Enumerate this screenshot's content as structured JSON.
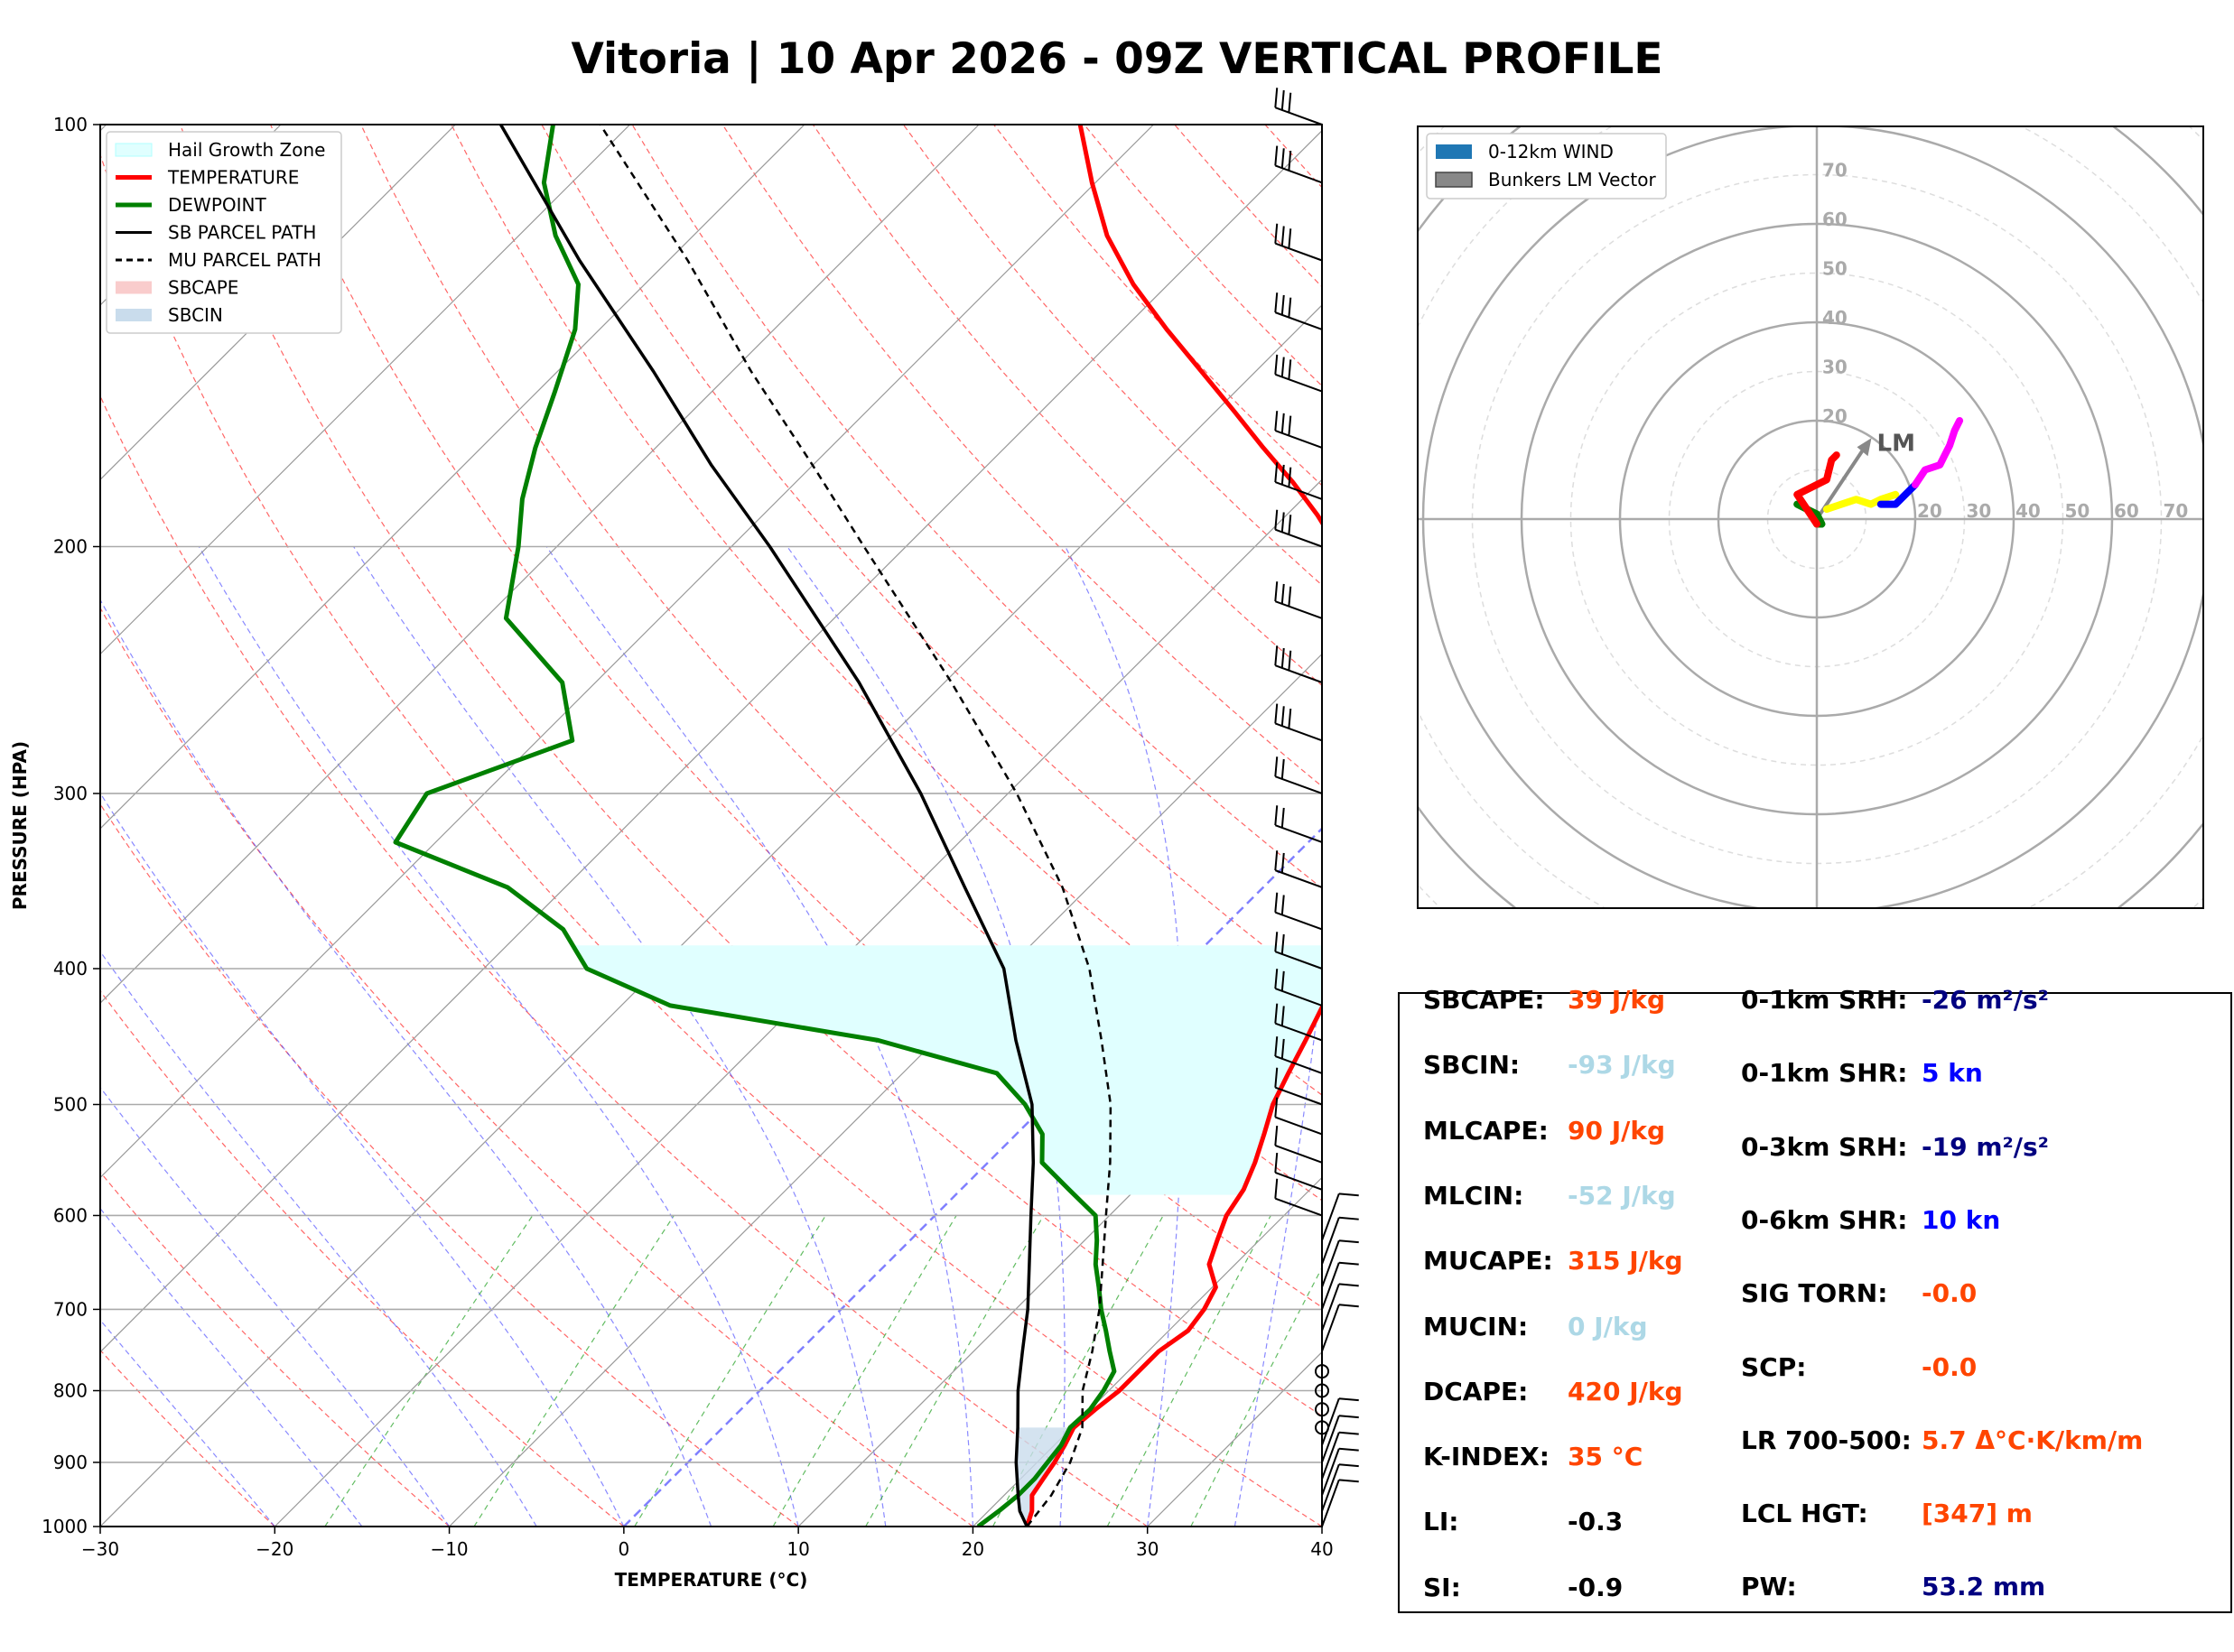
{
  "title": "Vitoria | 10 Apr 2026 - 09Z VERTICAL PROFILE",
  "chart_data": [
    {
      "type": "line",
      "subtype": "skew-t log-p",
      "xlabel": "TEMPERATURE (°C)",
      "ylabel": "PRESSURE (HPA)",
      "xlim": [
        -30,
        40
      ],
      "ylim": [
        1000,
        100
      ],
      "x_ticks": [
        "−30",
        "−20",
        "−10",
        "0",
        "10",
        "20",
        "30",
        "40"
      ],
      "y_ticks": [
        "100",
        "200",
        "300",
        "400",
        "500",
        "600",
        "700",
        "800",
        "900",
        "1000"
      ],
      "legend": {
        "position": "top-left",
        "entries": [
          {
            "label": "Hail Growth Zone",
            "color": "#e0ffff"
          },
          {
            "label": "TEMPERATURE",
            "color": "#ff0000"
          },
          {
            "label": "DEWPOINT",
            "color": "#008000"
          },
          {
            "label": "SB PARCEL PATH",
            "color": "#000000"
          },
          {
            "label": "MU PARCEL PATH",
            "color": "#000000"
          },
          {
            "label": "SBCAPE",
            "color": "#f9cccc"
          },
          {
            "label": "SBCIN",
            "color": "#c9dcec"
          }
        ]
      },
      "series": [
        {
          "name": "TEMPERATURE",
          "color": "#ff0000",
          "points": [
            [
              1000,
              23.1
            ],
            [
              975,
              22.5
            ],
            [
              950,
              21.6
            ],
            [
              925,
              21.3
            ],
            [
              900,
              21.0
            ],
            [
              875,
              20.6
            ],
            [
              850,
              20.1
            ],
            [
              825,
              20.3
            ],
            [
              800,
              20.6
            ],
            [
              775,
              20.6
            ],
            [
              750,
              20.6
            ],
            [
              725,
              21.1
            ],
            [
              700,
              20.8
            ],
            [
              675,
              20.2
            ],
            [
              650,
              18.5
            ],
            [
              625,
              17.6
            ],
            [
              600,
              16.7
            ],
            [
              575,
              16.2
            ],
            [
              550,
              15.3
            ],
            [
              525,
              14.2
            ],
            [
              500,
              13.0
            ],
            [
              475,
              12.1
            ],
            [
              450,
              11.2
            ],
            [
              425,
              10.2
            ],
            [
              400,
              9.0
            ],
            [
              375,
              7.7
            ],
            [
              350,
              5.9
            ],
            [
              325,
              3.7
            ],
            [
              300,
              1.0
            ],
            [
              275,
              -2.5
            ],
            [
              250,
              -6.1
            ],
            [
              225,
              -10.1
            ],
            [
              200,
              -15.3
            ],
            [
              190,
              -18.2
            ],
            [
              180,
              -21.5
            ],
            [
              170,
              -25.2
            ],
            [
              160,
              -29.0
            ],
            [
              150,
              -33.1
            ],
            [
              140,
              -37.5
            ],
            [
              130,
              -42.0
            ],
            [
              120,
              -46.3
            ],
            [
              110,
              -50.2
            ],
            [
              100,
              -54.2
            ]
          ]
        },
        {
          "name": "DEWPOINT",
          "color": "#008000",
          "points": [
            [
              1000,
              20.3
            ],
            [
              975,
              20.6
            ],
            [
              950,
              20.8
            ],
            [
              925,
              20.8
            ],
            [
              900,
              20.6
            ],
            [
              875,
              20.4
            ],
            [
              850,
              19.9
            ],
            [
              825,
              20.0
            ],
            [
              800,
              19.7
            ],
            [
              775,
              19.2
            ],
            [
              750,
              17.8
            ],
            [
              725,
              16.4
            ],
            [
              700,
              14.9
            ],
            [
              675,
              13.5
            ],
            [
              650,
              12.0
            ],
            [
              625,
              10.7
            ],
            [
              600,
              9.2
            ],
            [
              575,
              6.2
            ],
            [
              550,
              3.1
            ],
            [
              525,
              1.5
            ],
            [
              500,
              -1.2
            ],
            [
              475,
              -4.6
            ],
            [
              450,
              -13.3
            ],
            [
              425,
              -27.2
            ],
            [
              400,
              -34.1
            ],
            [
              375,
              -37.7
            ],
            [
              350,
              -43.3
            ],
            [
              325,
              -52.3
            ],
            [
              300,
              -53.3
            ],
            [
              275,
              -48.0
            ],
            [
              250,
              -51.9
            ],
            [
              225,
              -58.8
            ],
            [
              200,
              -62.2
            ],
            [
              185,
              -64.7
            ],
            [
              170,
              -66.9
            ],
            [
              155,
              -69.0
            ],
            [
              140,
              -71.4
            ],
            [
              130,
              -73.8
            ],
            [
              120,
              -77.9
            ],
            [
              110,
              -81.6
            ],
            [
              100,
              -84.4
            ]
          ]
        },
        {
          "name": "SB PARCEL PATH",
          "color": "#000000",
          "points": [
            [
              1000,
              23.1
            ],
            [
              975,
              21.8
            ],
            [
              950,
              20.8
            ],
            [
              900,
              18.8
            ],
            [
              850,
              16.9
            ],
            [
              800,
              14.8
            ],
            [
              750,
              12.8
            ],
            [
              700,
              10.7
            ],
            [
              650,
              8.2
            ],
            [
              600,
              5.5
            ],
            [
              550,
              2.6
            ],
            [
              500,
              -0.8
            ],
            [
              450,
              -5.4
            ],
            [
              400,
              -10.2
            ],
            [
              350,
              -17.1
            ],
            [
              300,
              -25.0
            ],
            [
              250,
              -34.9
            ],
            [
              200,
              -47.8
            ],
            [
              175,
              -55.8
            ],
            [
              150,
              -64.5
            ],
            [
              125,
              -75.1
            ],
            [
              100,
              -87.4
            ]
          ]
        },
        {
          "name": "MU PARCEL PATH",
          "color": "#000000",
          "points": [
            [
              1000,
              23.1
            ],
            [
              950,
              22.7
            ],
            [
              900,
              21.9
            ],
            [
              850,
              20.6
            ],
            [
              800,
              18.5
            ],
            [
              750,
              16.8
            ],
            [
              700,
              14.8
            ],
            [
              650,
              12.4
            ],
            [
              600,
              9.8
            ],
            [
              550,
              7.0
            ],
            [
              500,
              3.7
            ],
            [
              450,
              -0.5
            ],
            [
              400,
              -5.3
            ],
            [
              350,
              -11.5
            ],
            [
              300,
              -19.5
            ],
            [
              250,
              -29.6
            ],
            [
              200,
              -42.4
            ],
            [
              175,
              -50.0
            ],
            [
              150,
              -58.9
            ],
            [
              125,
              -68.9
            ],
            [
              100,
              -81.7
            ]
          ]
        }
      ],
      "hail_growth_zone": [
        385,
        580
      ],
      "wind_barbs_pressures": [
        1000,
        975,
        950,
        925,
        900,
        875,
        850,
        825,
        800,
        775,
        750,
        725,
        700,
        675,
        650,
        625,
        600,
        575,
        550,
        525,
        500,
        475,
        450,
        425,
        400,
        375,
        350,
        325,
        300,
        275,
        250,
        225,
        200,
        185,
        170,
        155,
        140,
        125,
        110,
        100
      ]
    },
    {
      "type": "scatter",
      "subtype": "hodograph",
      "ring_labels": [
        "20",
        "30",
        "40",
        "50",
        "60",
        "70"
      ],
      "legend": {
        "position": "top-left",
        "entries": [
          {
            "label": "0-12km WIND",
            "color": "#1f77b4"
          },
          {
            "label": "Bunkers LM Vector",
            "color": "#888888"
          }
        ]
      },
      "lm_label": "LM",
      "lm_vector": [
        10,
        15
      ],
      "segments": [
        {
          "name": "0-1km",
          "color": "#008000",
          "points": [
            [
              -4,
              3
            ],
            [
              -2,
              2
            ],
            [
              0,
              1
            ],
            [
              1,
              -1
            ],
            [
              0,
              -1
            ]
          ]
        },
        {
          "name": "1-3km",
          "color": "#ff0000",
          "points": [
            [
              0,
              -1
            ],
            [
              -2,
              2
            ],
            [
              -4,
              5
            ],
            [
              2,
              8
            ],
            [
              3,
              12
            ],
            [
              4,
              13
            ]
          ]
        },
        {
          "name": "3-6km",
          "color": "#ffff00",
          "points": [
            [
              2,
              2
            ],
            [
              5,
              3
            ],
            [
              8,
              4
            ],
            [
              11,
              3
            ],
            [
              13,
              4
            ],
            [
              16,
              5
            ]
          ]
        },
        {
          "name": "6-9km",
          "color": "#0000ff",
          "points": [
            [
              13,
              3
            ],
            [
              16,
              3
            ],
            [
              18,
              5
            ],
            [
              20,
              7
            ]
          ]
        },
        {
          "name": "9-12km",
          "color": "#ff00ff",
          "points": [
            [
              20,
              7
            ],
            [
              22,
              10
            ],
            [
              25,
              11
            ],
            [
              26,
              13
            ],
            [
              27,
              15
            ],
            [
              28,
              18
            ],
            [
              29,
              20
            ]
          ]
        }
      ]
    }
  ],
  "indices": {
    "left": [
      {
        "label": "SBCAPE:",
        "value": "39 J/kg",
        "color": "#ff4500"
      },
      {
        "label": "SBCIN:",
        "value": "-93 J/kg",
        "color": "#add8e6"
      },
      {
        "label": "MLCAPE:",
        "value": "90 J/kg",
        "color": "#ff4500"
      },
      {
        "label": "MLCIN:",
        "value": "-52 J/kg",
        "color": "#add8e6"
      },
      {
        "label": "MUCAPE:",
        "value": "315 J/kg",
        "color": "#ff4500"
      },
      {
        "label": "MUCIN:",
        "value": "0 J/kg",
        "color": "#add8e6"
      },
      {
        "label": "DCAPE:",
        "value": "420 J/kg",
        "color": "#ff4500"
      },
      {
        "label": "K-INDEX:",
        "value": "35 °C",
        "color": "#ff4500"
      },
      {
        "label": "LI:",
        "value": "-0.3",
        "color": "#000000"
      },
      {
        "label": "SI:",
        "value": "-0.9",
        "color": "#000000"
      }
    ],
    "right": [
      {
        "label": "0-1km SRH:",
        "value": "-26 m²/s²",
        "color": "#000080"
      },
      {
        "label": "0-1km SHR:",
        "value": "5 kn",
        "color": "#0000ff"
      },
      {
        "label": "0-3km SRH:",
        "value": "-19 m²/s²",
        "color": "#000080"
      },
      {
        "label": "0-6km SHR:",
        "value": "10 kn",
        "color": "#0000ff"
      },
      {
        "label": "SIG TORN:",
        "value": "-0.0",
        "color": "#ff4500"
      },
      {
        "label": "SCP:",
        "value": "-0.0",
        "color": "#ff4500"
      },
      {
        "label": "LR 700-500:",
        "value": "5.7 Δ°C·K/km/m",
        "color": "#ff4500"
      },
      {
        "label": "LCL HGT:",
        "value": "[347] m",
        "color": "#ff4500"
      },
      {
        "label": "PW:",
        "value": "53.2 mm",
        "color": "#000080"
      }
    ]
  }
}
